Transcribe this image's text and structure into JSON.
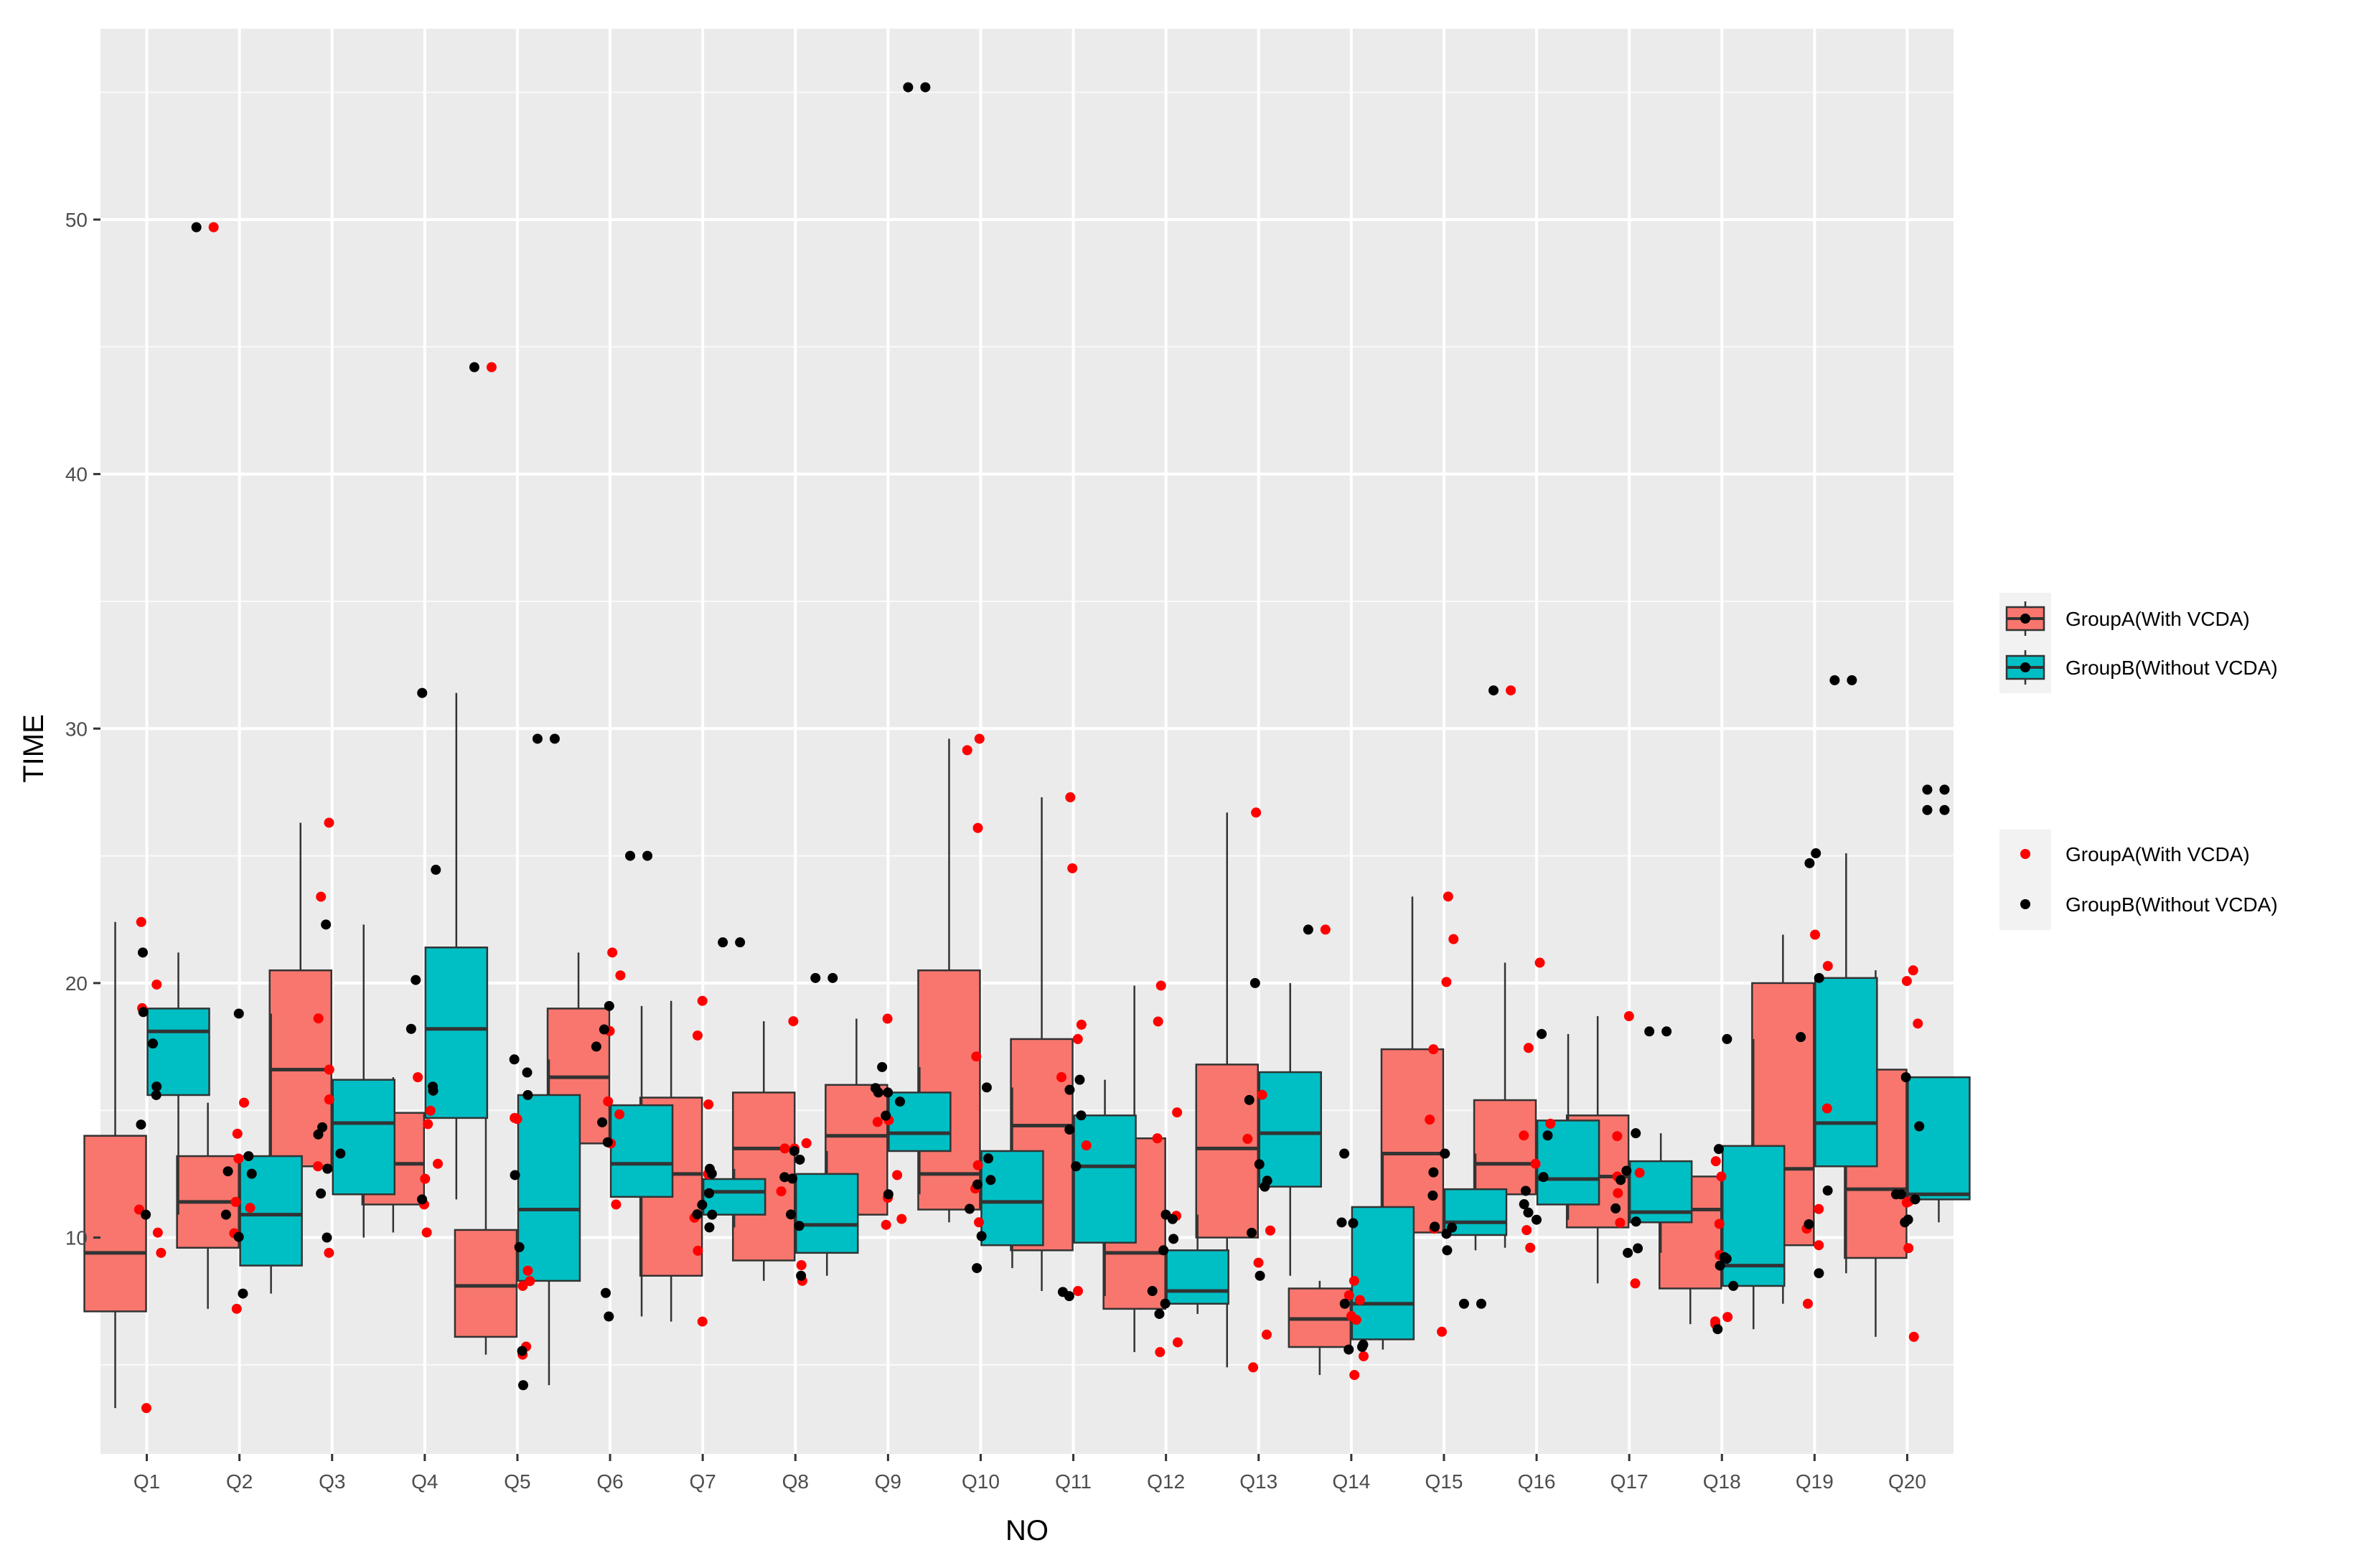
{
  "chart_data": {
    "type": "boxplot",
    "xlabel": "NO",
    "ylabel": "TIME",
    "ylim": [
      1.5,
      57.5
    ],
    "yticks": [
      10,
      20,
      30,
      40,
      50
    ],
    "grid": true,
    "categories": [
      "Q1",
      "Q2",
      "Q3",
      "Q4",
      "Q5",
      "Q6",
      "Q7",
      "Q8",
      "Q9",
      "Q10",
      "Q11",
      "Q12",
      "Q13",
      "Q14",
      "Q15",
      "Q16",
      "Q17",
      "Q18",
      "Q19",
      "Q20"
    ],
    "colors": {
      "panel_bg": "#ebebeb",
      "grid_major": "#ffffff",
      "groupA_fill": "#f8766d",
      "groupB_fill": "#00bfc4",
      "groupA_point": "#ff0000",
      "groupB_point": "#000000",
      "outline": "#333333",
      "text": "#4d4d4d",
      "axis_title": "#000000"
    },
    "legend": {
      "position": "right",
      "fill_entries": [
        "GroupA(With VCDA)",
        "GroupB(Without VCDA)"
      ],
      "point_entries": [
        "GroupA(With VCDA)",
        "GroupB(Without VCDA)"
      ]
    },
    "series": [
      {
        "name": "GroupA(With VCDA)",
        "boxes": [
          {
            "category": "Q1",
            "q1": 7.1,
            "median": 9.4,
            "q3": 14.0,
            "whisker_low": 3.3,
            "whisker_high": 22.4,
            "outliers": []
          },
          {
            "category": "Q2",
            "q1": 9.6,
            "median": 11.4,
            "q3": 13.2,
            "whisker_low": 7.2,
            "whisker_high": 15.3,
            "outliers": [
              49.7
            ]
          },
          {
            "category": "Q3",
            "q1": 12.8,
            "median": 16.6,
            "q3": 20.5,
            "whisker_low": 9.4,
            "whisker_high": 26.3,
            "outliers": []
          },
          {
            "category": "Q4",
            "q1": 11.3,
            "median": 12.9,
            "q3": 14.9,
            "whisker_low": 10.2,
            "whisker_high": 16.3,
            "outliers": []
          },
          {
            "category": "Q5",
            "q1": 6.1,
            "median": 8.1,
            "q3": 10.3,
            "whisker_low": 5.4,
            "whisker_high": 14.7,
            "outliers": [
              44.2
            ]
          },
          {
            "category": "Q6",
            "q1": 13.7,
            "median": 16.3,
            "q3": 19.0,
            "whisker_low": 11.3,
            "whisker_high": 21.2,
            "outliers": []
          },
          {
            "category": "Q7",
            "q1": 8.5,
            "median": 12.5,
            "q3": 15.5,
            "whisker_low": 6.7,
            "whisker_high": 19.3,
            "outliers": []
          },
          {
            "category": "Q8",
            "q1": 9.1,
            "median": 13.5,
            "q3": 15.7,
            "whisker_low": 8.3,
            "whisker_high": 18.5,
            "outliers": []
          },
          {
            "category": "Q9",
            "q1": 10.9,
            "median": 14.0,
            "q3": 16.0,
            "whisker_low": 10.5,
            "whisker_high": 18.6,
            "outliers": []
          },
          {
            "category": "Q10",
            "q1": 11.1,
            "median": 12.5,
            "q3": 20.5,
            "whisker_low": 10.6,
            "whisker_high": 29.6,
            "outliers": []
          },
          {
            "category": "Q11",
            "q1": 9.5,
            "median": 14.4,
            "q3": 17.8,
            "whisker_low": 7.9,
            "whisker_high": 27.3,
            "outliers": []
          },
          {
            "category": "Q12",
            "q1": 7.2,
            "median": 9.4,
            "q3": 13.9,
            "whisker_low": 5.5,
            "whisker_high": 19.9,
            "outliers": []
          },
          {
            "category": "Q13",
            "q1": 10.0,
            "median": 13.5,
            "q3": 16.8,
            "whisker_low": 4.9,
            "whisker_high": 26.7,
            "outliers": []
          },
          {
            "category": "Q14",
            "q1": 5.7,
            "median": 6.8,
            "q3": 8.0,
            "whisker_low": 4.6,
            "whisker_high": 8.3,
            "outliers": [
              22.1
            ]
          },
          {
            "category": "Q15",
            "q1": 10.2,
            "median": 13.3,
            "q3": 17.4,
            "whisker_low": 6.3,
            "whisker_high": 23.4,
            "outliers": []
          },
          {
            "category": "Q16",
            "q1": 11.7,
            "median": 12.9,
            "q3": 15.4,
            "whisker_low": 9.6,
            "whisker_high": 20.8,
            "outliers": [
              31.5
            ]
          },
          {
            "category": "Q17",
            "q1": 10.4,
            "median": 12.4,
            "q3": 14.8,
            "whisker_low": 8.2,
            "whisker_high": 18.7,
            "outliers": []
          },
          {
            "category": "Q18",
            "q1": 8.0,
            "median": 11.1,
            "q3": 12.4,
            "whisker_low": 6.6,
            "whisker_high": 13.0,
            "outliers": []
          },
          {
            "category": "Q19",
            "q1": 9.7,
            "median": 12.7,
            "q3": 20.0,
            "whisker_low": 7.4,
            "whisker_high": 21.9,
            "outliers": []
          },
          {
            "category": "Q20",
            "q1": 9.2,
            "median": 11.9,
            "q3": 16.6,
            "whisker_low": 6.1,
            "whisker_high": 20.5,
            "outliers": []
          }
        ]
      },
      {
        "name": "GroupB(Without VCDA)",
        "boxes": [
          {
            "category": "Q1",
            "q1": 15.6,
            "median": 18.1,
            "q3": 19.0,
            "whisker_low": 10.9,
            "whisker_high": 21.2,
            "outliers": []
          },
          {
            "category": "Q2",
            "q1": 8.9,
            "median": 10.9,
            "q3": 13.2,
            "whisker_low": 7.8,
            "whisker_high": 18.8,
            "outliers": []
          },
          {
            "category": "Q3",
            "q1": 11.7,
            "median": 14.5,
            "q3": 16.2,
            "whisker_low": 10.0,
            "whisker_high": 22.3,
            "outliers": []
          },
          {
            "category": "Q4",
            "q1": 14.7,
            "median": 18.2,
            "q3": 21.4,
            "whisker_low": 11.5,
            "whisker_high": 31.4,
            "outliers": []
          },
          {
            "category": "Q5",
            "q1": 8.3,
            "median": 11.1,
            "q3": 15.6,
            "whisker_low": 4.2,
            "whisker_high": 17.0,
            "outliers": [
              29.6
            ]
          },
          {
            "category": "Q6",
            "q1": 11.6,
            "median": 12.9,
            "q3": 15.2,
            "whisker_low": 6.9,
            "whisker_high": 19.1,
            "outliers": [
              25.0
            ]
          },
          {
            "category": "Q7",
            "q1": 10.9,
            "median": 11.8,
            "q3": 12.3,
            "whisker_low": 10.4,
            "whisker_high": 12.7,
            "outliers": [
              21.6
            ]
          },
          {
            "category": "Q8",
            "q1": 9.4,
            "median": 10.5,
            "q3": 12.5,
            "whisker_low": 8.5,
            "whisker_high": 13.4,
            "outliers": [
              20.2
            ]
          },
          {
            "category": "Q9",
            "q1": 13.4,
            "median": 14.1,
            "q3": 15.7,
            "whisker_low": 11.7,
            "whisker_high": 16.7,
            "outliers": [
              55.2
            ]
          },
          {
            "category": "Q10",
            "q1": 9.7,
            "median": 11.4,
            "q3": 13.4,
            "whisker_low": 8.8,
            "whisker_high": 15.9,
            "outliers": []
          },
          {
            "category": "Q11",
            "q1": 9.8,
            "median": 12.8,
            "q3": 14.8,
            "whisker_low": 7.7,
            "whisker_high": 16.2,
            "outliers": []
          },
          {
            "category": "Q12",
            "q1": 7.4,
            "median": 7.9,
            "q3": 9.5,
            "whisker_low": 7.0,
            "whisker_high": 10.9,
            "outliers": []
          },
          {
            "category": "Q13",
            "q1": 12.0,
            "median": 14.1,
            "q3": 16.5,
            "whisker_low": 8.5,
            "whisker_high": 20.0,
            "outliers": []
          },
          {
            "category": "Q14",
            "q1": 6.0,
            "median": 7.4,
            "q3": 11.2,
            "whisker_low": 5.6,
            "whisker_high": 13.3,
            "outliers": []
          },
          {
            "category": "Q15",
            "q1": 10.1,
            "median": 10.6,
            "q3": 11.9,
            "whisker_low": 9.5,
            "whisker_high": 13.3,
            "outliers": [
              7.4
            ]
          },
          {
            "category": "Q16",
            "q1": 11.3,
            "median": 12.3,
            "q3": 14.6,
            "whisker_low": 10.7,
            "whisker_high": 18.0,
            "outliers": []
          },
          {
            "category": "Q17",
            "q1": 10.6,
            "median": 11.0,
            "q3": 13.0,
            "whisker_low": 9.4,
            "whisker_high": 14.1,
            "outliers": [
              18.1
            ]
          },
          {
            "category": "Q18",
            "q1": 8.1,
            "median": 8.9,
            "q3": 13.6,
            "whisker_low": 6.4,
            "whisker_high": 17.8,
            "outliers": []
          },
          {
            "category": "Q19",
            "q1": 12.8,
            "median": 14.5,
            "q3": 20.2,
            "whisker_low": 8.6,
            "whisker_high": 25.1,
            "outliers": [
              31.9
            ]
          },
          {
            "category": "Q20",
            "q1": 11.5,
            "median": 11.7,
            "q3": 16.3,
            "whisker_low": 10.6,
            "whisker_high": 16.3,
            "outliers": [
              26.8,
              27.6
            ]
          }
        ]
      }
    ]
  }
}
